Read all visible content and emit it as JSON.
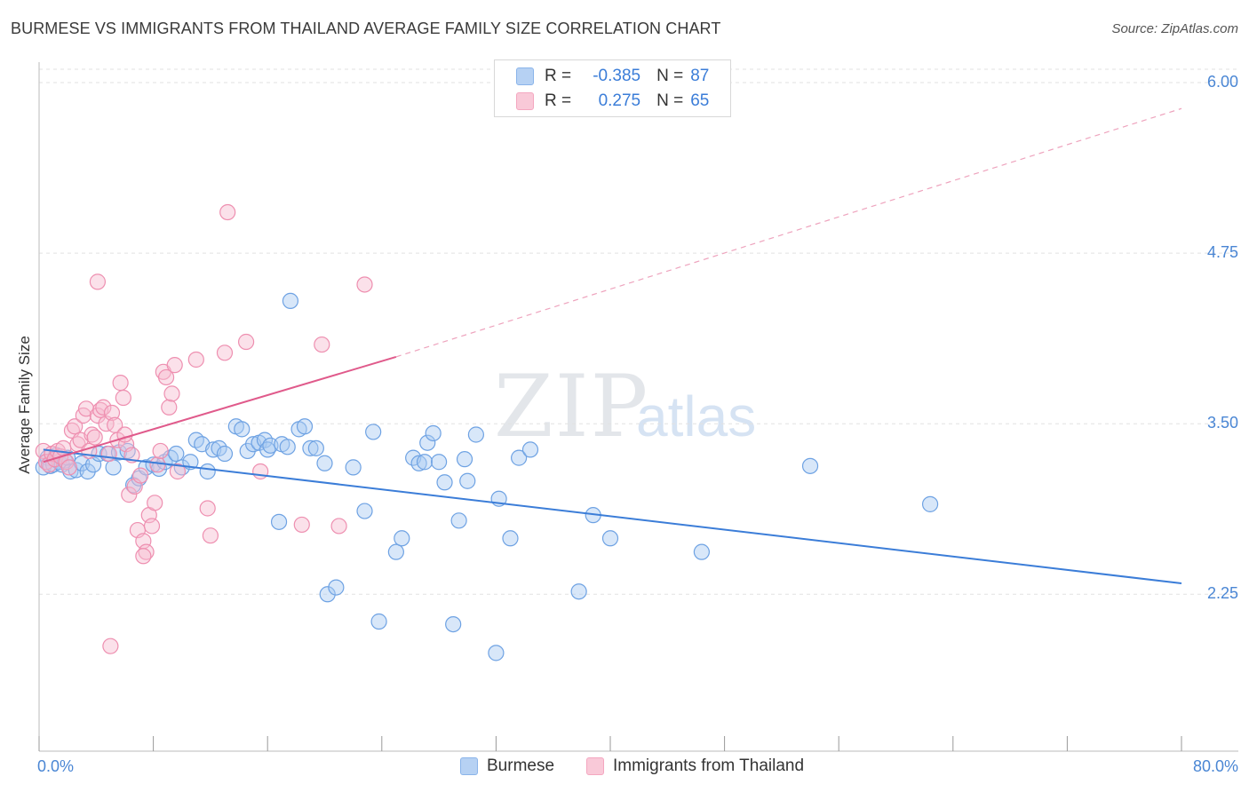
{
  "title": "BURMESE VS IMMIGRANTS FROM THAILAND AVERAGE FAMILY SIZE CORRELATION CHART",
  "source": "Source: ZipAtlas.com",
  "watermark": {
    "zip": "ZIP",
    "atlas": "atlas"
  },
  "legend": {
    "rows": [
      {
        "r_label": "R =",
        "r_value": "-0.385",
        "n_label": "N =",
        "n_value": "87",
        "color": "#8ab4ea"
      },
      {
        "r_label": "R =",
        "r_value": "0.275",
        "n_label": "N =",
        "n_value": "65",
        "color": "#f4a7c0"
      }
    ]
  },
  "bottom_legend": {
    "burmese": "Burmese",
    "thailand": "Immigrants from Thailand"
  },
  "colors": {
    "blue": "#3b7dd8",
    "blue_fill": "#a9c9f2",
    "pink": "#e05a8b",
    "pink_fill": "#f6bcd0",
    "grid": "#e2e2e2"
  },
  "chart_data": {
    "type": "scatter",
    "ylabel": "Average Family Size",
    "xlim": [
      0,
      80
    ],
    "ylim": [
      1.1,
      6.15
    ],
    "yticks": [
      2.25,
      3.5,
      4.75,
      6.0
    ],
    "ytick_labels": [
      "2.25",
      "3.50",
      "4.75",
      "6.00"
    ],
    "xtick_labels": [
      "0.0%",
      "80.0%"
    ],
    "grid": true,
    "series": [
      {
        "name": "Burmese",
        "color": "#3b7dd8",
        "R": -0.385,
        "N": 87,
        "trend": {
          "x": [
            0.3,
            80
          ],
          "y": [
            3.31,
            2.33
          ],
          "dashed_after": null
        },
        "points": [
          [
            0.3,
            3.18
          ],
          [
            0.5,
            3.22
          ],
          [
            0.6,
            3.25
          ],
          [
            0.8,
            3.19
          ],
          [
            1.0,
            3.2
          ],
          [
            1.2,
            3.27
          ],
          [
            1.4,
            3.22
          ],
          [
            1.6,
            3.2
          ],
          [
            1.8,
            3.23
          ],
          [
            2.0,
            3.25
          ],
          [
            2.2,
            3.15
          ],
          [
            2.6,
            3.16
          ],
          [
            3.0,
            3.21
          ],
          [
            3.4,
            3.15
          ],
          [
            3.8,
            3.2
          ],
          [
            4.2,
            3.28
          ],
          [
            4.8,
            3.28
          ],
          [
            5.2,
            3.18
          ],
          [
            5.6,
            3.29
          ],
          [
            6.2,
            3.3
          ],
          [
            6.6,
            3.05
          ],
          [
            7.0,
            3.1
          ],
          [
            7.5,
            3.18
          ],
          [
            8.0,
            3.2
          ],
          [
            8.4,
            3.17
          ],
          [
            8.8,
            3.22
          ],
          [
            9.2,
            3.25
          ],
          [
            9.6,
            3.28
          ],
          [
            10.0,
            3.18
          ],
          [
            10.6,
            3.22
          ],
          [
            11.0,
            3.38
          ],
          [
            11.4,
            3.35
          ],
          [
            11.8,
            3.15
          ],
          [
            12.2,
            3.31
          ],
          [
            12.6,
            3.32
          ],
          [
            13.0,
            3.28
          ],
          [
            13.8,
            3.48
          ],
          [
            14.2,
            3.46
          ],
          [
            14.6,
            3.3
          ],
          [
            15.0,
            3.35
          ],
          [
            15.4,
            3.36
          ],
          [
            15.8,
            3.38
          ],
          [
            16.0,
            3.31
          ],
          [
            16.2,
            3.34
          ],
          [
            17.0,
            3.35
          ],
          [
            17.4,
            3.33
          ],
          [
            16.8,
            2.78
          ],
          [
            17.6,
            4.4
          ],
          [
            18.2,
            3.46
          ],
          [
            18.6,
            3.48
          ],
          [
            19.0,
            3.32
          ],
          [
            19.4,
            3.32
          ],
          [
            20.0,
            3.21
          ],
          [
            20.2,
            2.25
          ],
          [
            20.8,
            2.3
          ],
          [
            22.0,
            3.18
          ],
          [
            22.8,
            2.86
          ],
          [
            23.4,
            3.44
          ],
          [
            23.8,
            2.05
          ],
          [
            25.0,
            2.56
          ],
          [
            25.4,
            2.66
          ],
          [
            26.2,
            3.25
          ],
          [
            26.6,
            3.21
          ],
          [
            27.0,
            3.22
          ],
          [
            27.2,
            3.36
          ],
          [
            27.6,
            3.43
          ],
          [
            28.0,
            3.22
          ],
          [
            28.4,
            3.07
          ],
          [
            29.0,
            2.03
          ],
          [
            29.4,
            2.79
          ],
          [
            29.8,
            3.24
          ],
          [
            30.0,
            3.08
          ],
          [
            30.6,
            3.42
          ],
          [
            32.0,
            1.82
          ],
          [
            32.2,
            2.95
          ],
          [
            33.0,
            2.66
          ],
          [
            33.6,
            3.25
          ],
          [
            34.4,
            3.31
          ],
          [
            37.8,
            2.27
          ],
          [
            38.8,
            2.83
          ],
          [
            40.0,
            2.66
          ],
          [
            46.4,
            2.56
          ],
          [
            54.0,
            3.19
          ],
          [
            62.4,
            2.91
          ]
        ]
      },
      {
        "name": "Immigrants from Thailand",
        "color": "#e05a8b",
        "R": 0.275,
        "N": 65,
        "trend": {
          "x": [
            0.3,
            25
          ],
          "y": [
            3.22,
            3.99
          ],
          "dashed_to": {
            "x": 80,
            "y": 5.81
          }
        },
        "points": [
          [
            0.3,
            3.3
          ],
          [
            0.5,
            3.22
          ],
          [
            0.7,
            3.2
          ],
          [
            0.9,
            3.28
          ],
          [
            1.1,
            3.24
          ],
          [
            1.3,
            3.3
          ],
          [
            1.5,
            3.26
          ],
          [
            1.7,
            3.32
          ],
          [
            1.9,
            3.22
          ],
          [
            2.1,
            3.18
          ],
          [
            2.3,
            3.45
          ],
          [
            2.5,
            3.48
          ],
          [
            2.7,
            3.35
          ],
          [
            2.9,
            3.38
          ],
          [
            3.1,
            3.56
          ],
          [
            3.3,
            3.61
          ],
          [
            3.5,
            3.3
          ],
          [
            3.7,
            3.42
          ],
          [
            3.9,
            3.4
          ],
          [
            4.1,
            3.56
          ],
          [
            4.3,
            3.6
          ],
          [
            4.5,
            3.62
          ],
          [
            4.7,
            3.5
          ],
          [
            4.9,
            3.28
          ],
          [
            5.1,
            3.58
          ],
          [
            5.3,
            3.49
          ],
          [
            5.5,
            3.38
          ],
          [
            5.7,
            3.8
          ],
          [
            5.9,
            3.69
          ],
          [
            6.1,
            3.35
          ],
          [
            6.3,
            2.98
          ],
          [
            6.5,
            3.27
          ],
          [
            6.7,
            3.04
          ],
          [
            6.9,
            2.72
          ],
          [
            7.1,
            3.12
          ],
          [
            7.3,
            2.64
          ],
          [
            7.5,
            2.56
          ],
          [
            7.7,
            2.83
          ],
          [
            7.9,
            2.75
          ],
          [
            8.1,
            2.92
          ],
          [
            8.3,
            3.2
          ],
          [
            8.5,
            3.3
          ],
          [
            8.7,
            3.88
          ],
          [
            8.9,
            3.84
          ],
          [
            9.1,
            3.62
          ],
          [
            9.3,
            3.72
          ],
          [
            9.5,
            3.93
          ],
          [
            9.7,
            3.15
          ],
          [
            6.0,
            3.42
          ],
          [
            4.1,
            4.54
          ],
          [
            7.3,
            2.53
          ],
          [
            5.0,
            1.87
          ],
          [
            11.0,
            3.97
          ],
          [
            11.8,
            2.88
          ],
          [
            12.0,
            2.68
          ],
          [
            13.0,
            4.02
          ],
          [
            13.2,
            5.05
          ],
          [
            14.5,
            4.1
          ],
          [
            15.5,
            3.15
          ],
          [
            18.4,
            2.76
          ],
          [
            19.8,
            4.08
          ],
          [
            21.0,
            2.75
          ],
          [
            22.8,
            4.52
          ]
        ]
      }
    ]
  }
}
